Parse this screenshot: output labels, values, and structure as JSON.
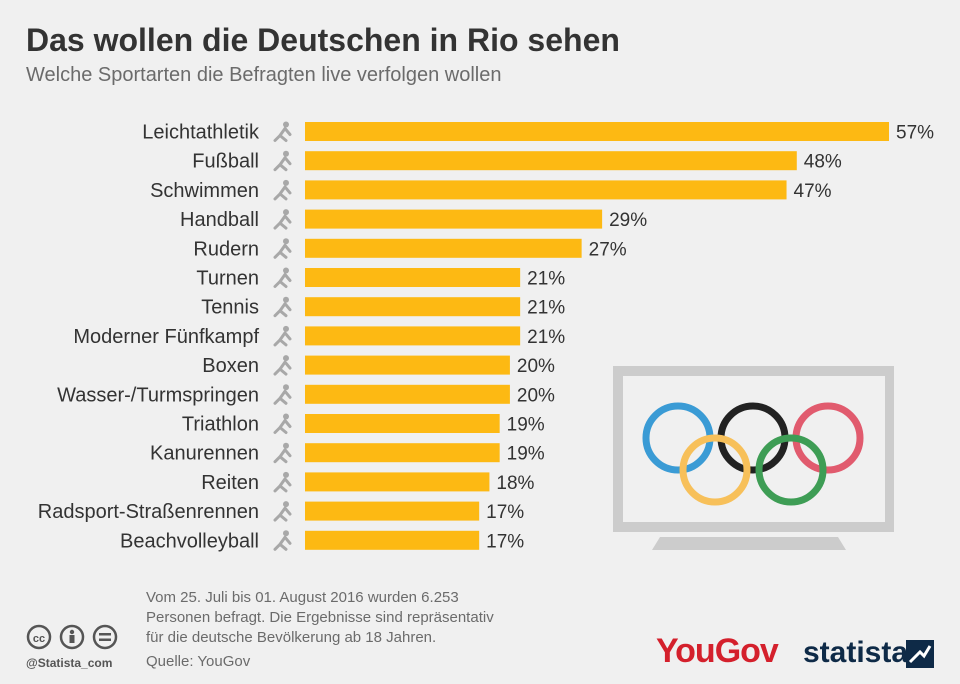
{
  "header": {
    "title": "Das wollen die Deutschen in Rio sehen",
    "subtitle": "Welche Sportarten die Befragten live verfolgen wollen"
  },
  "chart_data": {
    "type": "bar",
    "orientation": "horizontal",
    "categories": [
      "Leichtathletik",
      "Fußball",
      "Schwimmen",
      "Handball",
      "Rudern",
      "Turnen",
      "Tennis",
      "Moderner Fünfkampf",
      "Boxen",
      "Wasser-/Turmspringen",
      "Triathlon",
      "Kanurennen",
      "Reiten",
      "Radsport-Straßenrennen",
      "Beachvolleyball"
    ],
    "values": [
      57,
      48,
      47,
      29,
      27,
      21,
      21,
      21,
      20,
      20,
      19,
      19,
      18,
      17,
      17
    ],
    "value_labels": [
      "57%",
      "48%",
      "47%",
      "29%",
      "27%",
      "21%",
      "21%",
      "21%",
      "20%",
      "20%",
      "19%",
      "19%",
      "18%",
      "17%",
      "17%"
    ],
    "icons": [
      "running-icon",
      "soccer-icon",
      "swimming-icon",
      "handball-icon",
      "rowing-icon",
      "gymnastics-icon",
      "tennis-icon",
      "pentathlon-icon",
      "boxing-icon",
      "diving-icon",
      "triathlon-icon",
      "canoe-icon",
      "equestrian-icon",
      "cycling-icon",
      "volleyball-icon"
    ],
    "bar_color": "#fdb913",
    "xlim": [
      0,
      57
    ],
    "grid": false
  },
  "footnote": {
    "lines": [
      "Vom 25. Juli bis 01. August 2016 wurden 6.253",
      "Personen befragt. Die Ergebnisse sind repräsentativ",
      "für die deutsche Bevölkerung ab 18 Jahren."
    ],
    "source": "Quelle: YouGov"
  },
  "branding": {
    "handle": "@Statista_com",
    "yougov": "YouGov",
    "statista": "statista"
  },
  "colors": {
    "ring_blue": "#3a9bd5",
    "ring_black": "#222222",
    "ring_red": "#e15b6e",
    "ring_yellow": "#f7c05a",
    "ring_green": "#3e9d55",
    "tv_frame": "#cccccc",
    "icon_grey": "#a8a8a8"
  }
}
